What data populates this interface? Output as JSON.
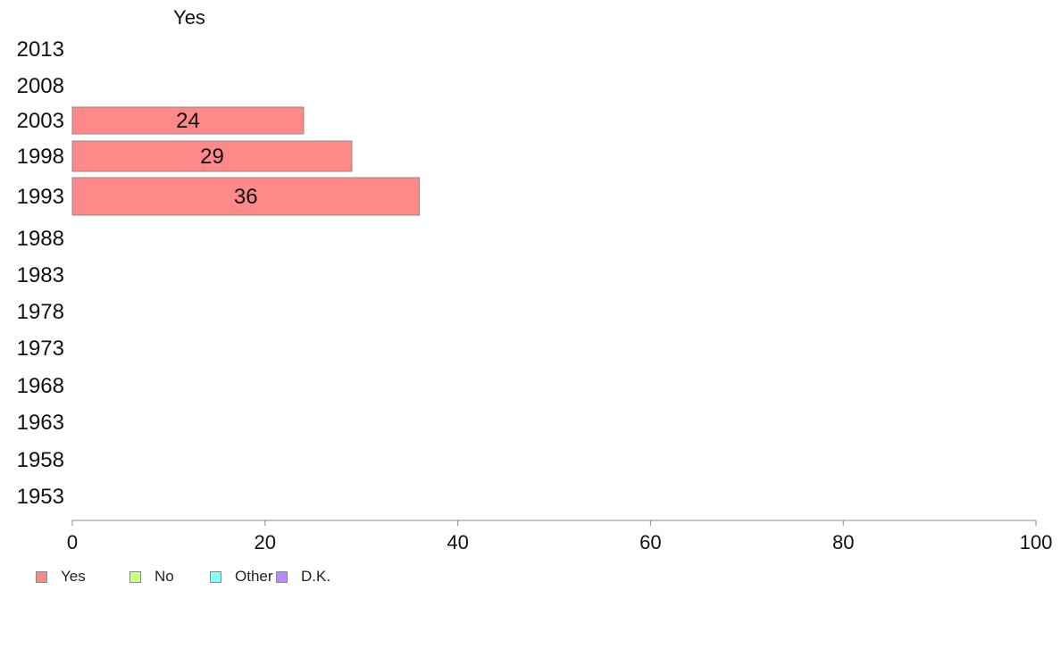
{
  "chart_data": {
    "type": "bar",
    "orientation": "horizontal",
    "stacked": true,
    "title": "Yes",
    "categories": [
      "2013",
      "2008",
      "2003",
      "1998",
      "1993",
      "1988",
      "1983",
      "1978",
      "1973",
      "1968",
      "1963",
      "1958",
      "1953"
    ],
    "series": [
      {
        "name": "Yes",
        "values": [
          null,
          null,
          24,
          29,
          36,
          null,
          null,
          null,
          null,
          null,
          null,
          null,
          null
        ],
        "color": "#ff8888"
      },
      {
        "name": "No",
        "values": [
          null,
          null,
          null,
          null,
          null,
          null,
          null,
          null,
          null,
          null,
          null,
          null,
          null
        ],
        "color": "#ccff88"
      },
      {
        "name": "Other",
        "values": [
          null,
          null,
          null,
          null,
          null,
          null,
          null,
          null,
          null,
          null,
          null,
          null,
          null
        ],
        "color": "#88ffff"
      },
      {
        "name": "D.K.",
        "values": [
          null,
          null,
          null,
          null,
          null,
          null,
          null,
          null,
          null,
          null,
          null,
          null,
          null
        ],
        "color": "#bb88ff"
      }
    ],
    "data_labels": [
      null,
      null,
      "24",
      "29",
      "36",
      null,
      null,
      null,
      null,
      null,
      null,
      null,
      null
    ],
    "xlim": [
      0,
      100
    ],
    "xticks": [
      0,
      20,
      40,
      60,
      80,
      100
    ],
    "xtick_labels": [
      "0",
      "20",
      "40",
      "60",
      "80",
      "100"
    ],
    "xlabel": "",
    "ylabel": "",
    "grid": false,
    "legend_position": "bottom-left"
  },
  "legend": [
    {
      "label": "Yes",
      "color": "#ff8888"
    },
    {
      "label": "No",
      "color": "#ccff88"
    },
    {
      "label": "Other",
      "color": "#88ffff"
    },
    {
      "label": "D.K.",
      "color": "#bb88ff"
    }
  ]
}
